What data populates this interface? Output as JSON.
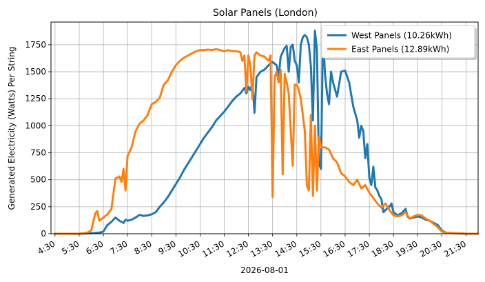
{
  "chart_data": {
    "type": "line",
    "title": "Solar Panels (London)",
    "xlabel": "2026-08-01",
    "ylabel": "Generated Electricity (Watts) Per String",
    "x_ticks": [
      "4:30",
      "5:30",
      "6:30",
      "7:30",
      "8:30",
      "9:30",
      "10:30",
      "11:30",
      "12:30",
      "13:30",
      "14:30",
      "15:30",
      "16:30",
      "17:30",
      "18:30",
      "19:30",
      "20:30",
      "21:30"
    ],
    "xlim": [
      "4:20",
      "22:00"
    ],
    "y_ticks": [
      0,
      250,
      500,
      750,
      1000,
      1250,
      1500,
      1750
    ],
    "ylim": [
      0,
      1960
    ],
    "grid": true,
    "legend_position": "top-right",
    "series": [
      {
        "name": "West Panels (10.26kWh)",
        "color": "#1f77b4",
        "points": [
          [
            "4:30",
            0
          ],
          [
            "5:30",
            0
          ],
          [
            "6:00",
            5
          ],
          [
            "6:20",
            10
          ],
          [
            "6:30",
            20
          ],
          [
            "6:40",
            80
          ],
          [
            "6:50",
            110
          ],
          [
            "7:00",
            150
          ],
          [
            "7:10",
            120
          ],
          [
            "7:20",
            100
          ],
          [
            "7:25",
            130
          ],
          [
            "7:30",
            120
          ],
          [
            "7:40",
            130
          ],
          [
            "7:50",
            150
          ],
          [
            "8:00",
            175
          ],
          [
            "8:10",
            165
          ],
          [
            "8:20",
            170
          ],
          [
            "8:30",
            180
          ],
          [
            "8:40",
            200
          ],
          [
            "8:50",
            250
          ],
          [
            "9:00",
            290
          ],
          [
            "9:10",
            340
          ],
          [
            "9:20",
            400
          ],
          [
            "9:30",
            460
          ],
          [
            "9:40",
            520
          ],
          [
            "9:50",
            590
          ],
          [
            "10:00",
            650
          ],
          [
            "10:10",
            710
          ],
          [
            "10:20",
            770
          ],
          [
            "10:30",
            830
          ],
          [
            "10:40",
            890
          ],
          [
            "10:50",
            940
          ],
          [
            "11:00",
            990
          ],
          [
            "11:10",
            1050
          ],
          [
            "11:20",
            1090
          ],
          [
            "11:30",
            1130
          ],
          [
            "11:40",
            1180
          ],
          [
            "11:50",
            1230
          ],
          [
            "12:00",
            1270
          ],
          [
            "12:10",
            1300
          ],
          [
            "12:20",
            1350
          ],
          [
            "12:25",
            1300
          ],
          [
            "12:30",
            1360
          ],
          [
            "12:35",
            1330
          ],
          [
            "12:40",
            1400
          ],
          [
            "12:45",
            1120
          ],
          [
            "12:50",
            1450
          ],
          [
            "13:00",
            1500
          ],
          [
            "13:10",
            1520
          ],
          [
            "13:20",
            1560
          ],
          [
            "13:25",
            1580
          ],
          [
            "13:30",
            1590
          ],
          [
            "13:40",
            1560
          ],
          [
            "13:45",
            1450
          ],
          [
            "13:50",
            1640
          ],
          [
            "14:00",
            1720
          ],
          [
            "14:05",
            1740
          ],
          [
            "14:10",
            1500
          ],
          [
            "14:15",
            1730
          ],
          [
            "14:20",
            1750
          ],
          [
            "14:25",
            1600
          ],
          [
            "14:30",
            1560
          ],
          [
            "14:35",
            1400
          ],
          [
            "14:40",
            1750
          ],
          [
            "14:45",
            1820
          ],
          [
            "14:50",
            1840
          ],
          [
            "14:55",
            1820
          ],
          [
            "15:00",
            1750
          ],
          [
            "15:05",
            1550
          ],
          [
            "15:10",
            1050
          ],
          [
            "15:15",
            1880
          ],
          [
            "15:20",
            1700
          ],
          [
            "15:25",
            650
          ],
          [
            "15:30",
            600
          ],
          [
            "15:35",
            1850
          ],
          [
            "15:40",
            1480
          ],
          [
            "15:45",
            1300
          ],
          [
            "15:50",
            1200
          ],
          [
            "15:55",
            1500
          ],
          [
            "16:00",
            1400
          ],
          [
            "16:10",
            1270
          ],
          [
            "16:20",
            1500
          ],
          [
            "16:30",
            1510
          ],
          [
            "16:40",
            1400
          ],
          [
            "16:50",
            1180
          ],
          [
            "17:00",
            1050
          ],
          [
            "17:05",
            890
          ],
          [
            "17:10",
            1000
          ],
          [
            "17:15",
            950
          ],
          [
            "17:20",
            700
          ],
          [
            "17:25",
            830
          ],
          [
            "17:30",
            520
          ],
          [
            "17:35",
            450
          ],
          [
            "17:40",
            620
          ],
          [
            "17:45",
            430
          ],
          [
            "17:50",
            400
          ],
          [
            "17:55",
            350
          ],
          [
            "18:00",
            320
          ],
          [
            "18:05",
            200
          ],
          [
            "18:10",
            220
          ],
          [
            "18:20",
            250
          ],
          [
            "18:25",
            280
          ],
          [
            "18:30",
            200
          ],
          [
            "18:40",
            170
          ],
          [
            "18:50",
            190
          ],
          [
            "19:00",
            230
          ],
          [
            "19:05",
            160
          ],
          [
            "19:10",
            140
          ],
          [
            "19:20",
            150
          ],
          [
            "19:30",
            160
          ],
          [
            "19:40",
            150
          ],
          [
            "19:50",
            130
          ],
          [
            "20:00",
            120
          ],
          [
            "20:10",
            100
          ],
          [
            "20:20",
            80
          ],
          [
            "20:30",
            30
          ],
          [
            "20:40",
            10
          ],
          [
            "21:00",
            5
          ],
          [
            "21:30",
            0
          ],
          [
            "22:00",
            0
          ]
        ]
      },
      {
        "name": "East Panels (12.89kWh)",
        "color": "#ff7f0e",
        "points": [
          [
            "4:30",
            0
          ],
          [
            "5:30",
            0
          ],
          [
            "5:50",
            10
          ],
          [
            "6:00",
            30
          ],
          [
            "6:10",
            190
          ],
          [
            "6:15",
            210
          ],
          [
            "6:20",
            120
          ],
          [
            "6:30",
            150
          ],
          [
            "6:40",
            180
          ],
          [
            "6:50",
            230
          ],
          [
            "7:00",
            510
          ],
          [
            "7:10",
            530
          ],
          [
            "7:15",
            480
          ],
          [
            "7:20",
            600
          ],
          [
            "7:25",
            400
          ],
          [
            "7:30",
            720
          ],
          [
            "7:40",
            800
          ],
          [
            "7:50",
            950
          ],
          [
            "8:00",
            1020
          ],
          [
            "8:10",
            1050
          ],
          [
            "8:20",
            1100
          ],
          [
            "8:30",
            1200
          ],
          [
            "8:40",
            1220
          ],
          [
            "8:50",
            1260
          ],
          [
            "9:00",
            1380
          ],
          [
            "9:10",
            1420
          ],
          [
            "9:20",
            1500
          ],
          [
            "9:30",
            1560
          ],
          [
            "9:40",
            1600
          ],
          [
            "9:50",
            1630
          ],
          [
            "10:00",
            1650
          ],
          [
            "10:10",
            1670
          ],
          [
            "10:20",
            1690
          ],
          [
            "10:30",
            1700
          ],
          [
            "10:40",
            1700
          ],
          [
            "10:50",
            1705
          ],
          [
            "11:00",
            1700
          ],
          [
            "11:10",
            1710
          ],
          [
            "11:20",
            1700
          ],
          [
            "11:30",
            1690
          ],
          [
            "11:40",
            1700
          ],
          [
            "11:50",
            1690
          ],
          [
            "12:00",
            1690
          ],
          [
            "12:10",
            1680
          ],
          [
            "12:15",
            1600
          ],
          [
            "12:20",
            1650
          ],
          [
            "12:25",
            1320
          ],
          [
            "12:30",
            1650
          ],
          [
            "12:35",
            1550
          ],
          [
            "12:40",
            1250
          ],
          [
            "12:45",
            1650
          ],
          [
            "12:50",
            1680
          ],
          [
            "13:00",
            1650
          ],
          [
            "13:10",
            1640
          ],
          [
            "13:20",
            1600
          ],
          [
            "13:25",
            1650
          ],
          [
            "13:30",
            340
          ],
          [
            "13:35",
            1450
          ],
          [
            "13:40",
            1500
          ],
          [
            "13:45",
            1400
          ],
          [
            "13:50",
            1520
          ],
          [
            "13:55",
            550
          ],
          [
            "14:00",
            1480
          ],
          [
            "14:05",
            1400
          ],
          [
            "14:10",
            1300
          ],
          [
            "14:15",
            950
          ],
          [
            "14:20",
            630
          ],
          [
            "14:25",
            1380
          ],
          [
            "14:30",
            1380
          ],
          [
            "14:35",
            1330
          ],
          [
            "14:40",
            1250
          ],
          [
            "14:45",
            1100
          ],
          [
            "14:50",
            950
          ],
          [
            "14:55",
            450
          ],
          [
            "15:00",
            400
          ],
          [
            "15:05",
            1100
          ],
          [
            "15:10",
            350
          ],
          [
            "15:15",
            1000
          ],
          [
            "15:20",
            400
          ],
          [
            "15:25",
            900
          ],
          [
            "15:30",
            800
          ],
          [
            "15:40",
            800
          ],
          [
            "15:50",
            780
          ],
          [
            "16:00",
            700
          ],
          [
            "16:10",
            660
          ],
          [
            "16:20",
            560
          ],
          [
            "16:30",
            530
          ],
          [
            "16:40",
            480
          ],
          [
            "16:50",
            450
          ],
          [
            "17:00",
            500
          ],
          [
            "17:10",
            420
          ],
          [
            "17:20",
            450
          ],
          [
            "17:30",
            380
          ],
          [
            "17:40",
            330
          ],
          [
            "17:50",
            280
          ],
          [
            "18:00",
            240
          ],
          [
            "18:10",
            280
          ],
          [
            "18:20",
            220
          ],
          [
            "18:30",
            170
          ],
          [
            "18:40",
            160
          ],
          [
            "18:50",
            170
          ],
          [
            "19:00",
            200
          ],
          [
            "19:10",
            140
          ],
          [
            "19:20",
            160
          ],
          [
            "19:30",
            175
          ],
          [
            "19:40",
            170
          ],
          [
            "19:50",
            140
          ],
          [
            "20:00",
            120
          ],
          [
            "20:10",
            90
          ],
          [
            "20:20",
            60
          ],
          [
            "20:30",
            20
          ],
          [
            "20:40",
            10
          ],
          [
            "21:00",
            5
          ],
          [
            "21:30",
            0
          ],
          [
            "22:00",
            0
          ]
        ]
      }
    ]
  }
}
